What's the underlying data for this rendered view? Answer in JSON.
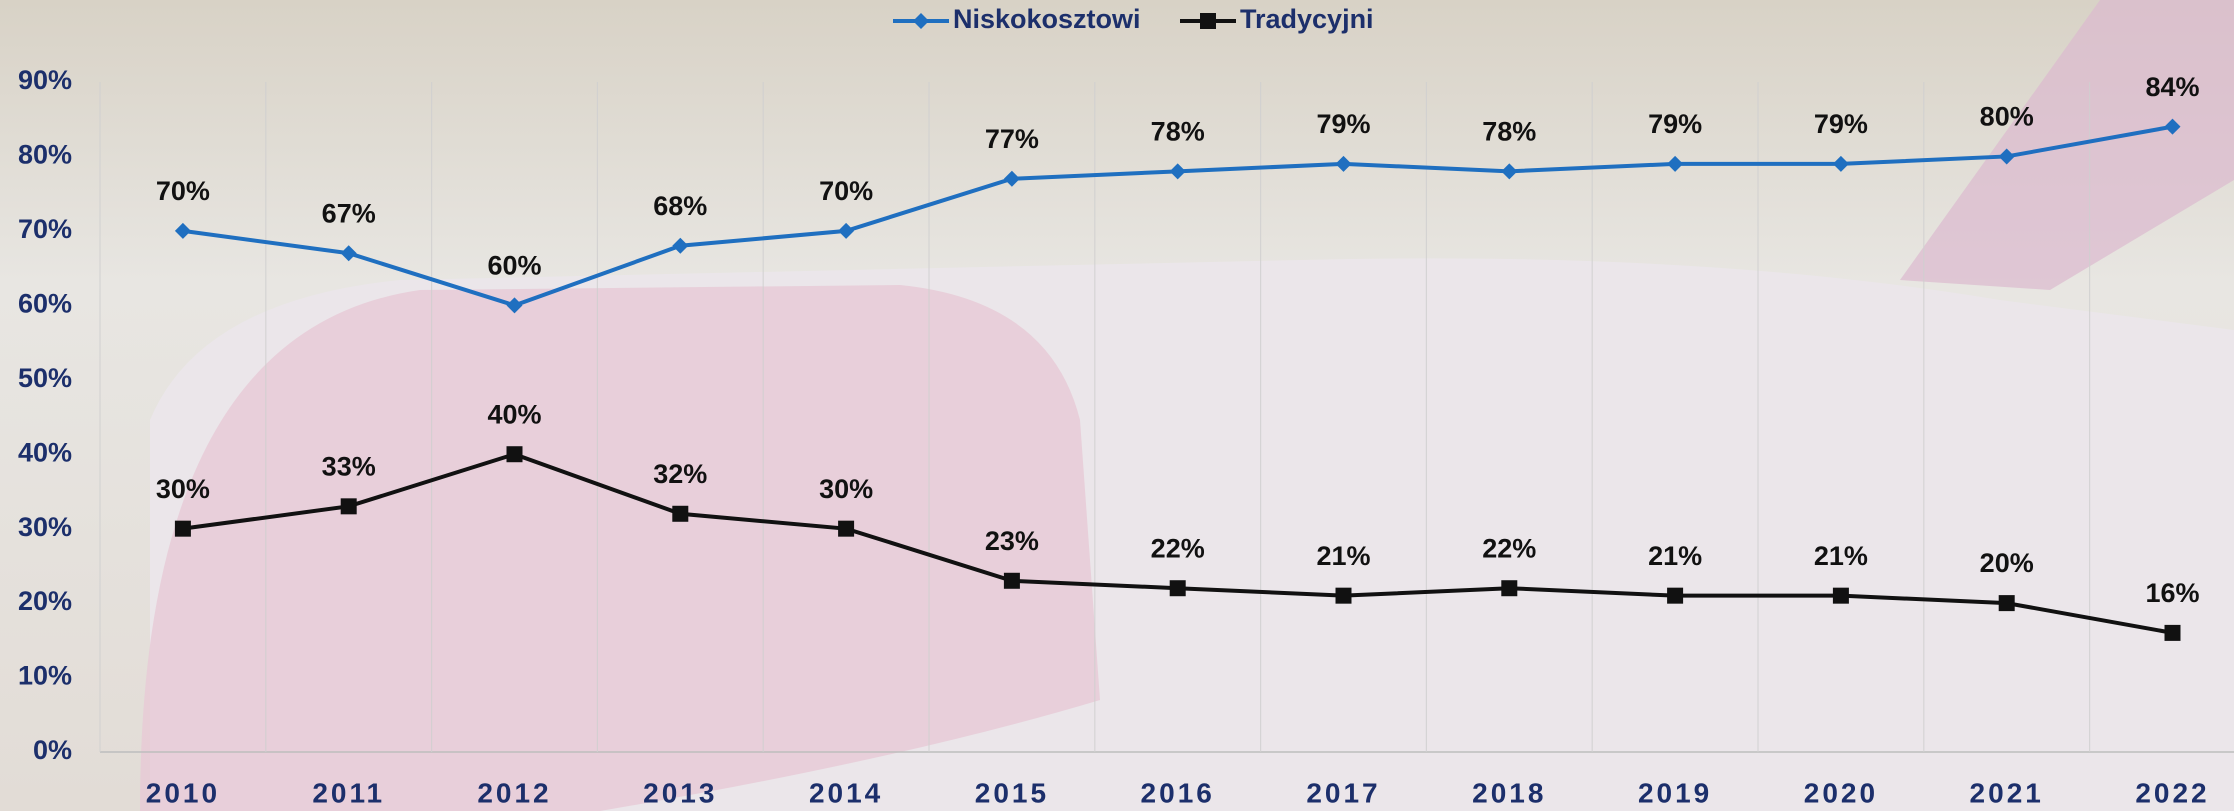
{
  "chart_data": {
    "type": "line",
    "categories": [
      "2010",
      "2011",
      "2012",
      "2013",
      "2014",
      "2015",
      "2016",
      "2017",
      "2018",
      "2019",
      "2020",
      "2021",
      "2022"
    ],
    "series": [
      {
        "name": "Niskokosztowi",
        "color": "#1f6fc0",
        "marker": "diamond",
        "values": [
          70,
          67,
          60,
          68,
          70,
          77,
          78,
          79,
          78,
          79,
          79,
          80,
          84
        ],
        "value_labels": [
          "70%",
          "67%",
          "60%",
          "68%",
          "70%",
          "77%",
          "78%",
          "79%",
          "78%",
          "79%",
          "79%",
          "80%",
          "84%"
        ]
      },
      {
        "name": "Tradycyjni",
        "color": "#111111",
        "marker": "square",
        "values": [
          30,
          33,
          40,
          32,
          30,
          23,
          22,
          21,
          22,
          21,
          21,
          20,
          16
        ],
        "value_labels": [
          "30%",
          "33%",
          "40%",
          "32%",
          "30%",
          "23%",
          "22%",
          "21%",
          "22%",
          "21%",
          "21%",
          "20%",
          "16%"
        ]
      }
    ],
    "ylim": [
      0,
      90
    ],
    "yticks": [
      {
        "value": 0,
        "label": "0%"
      },
      {
        "value": 10,
        "label": "10%"
      },
      {
        "value": 20,
        "label": "20%"
      },
      {
        "value": 30,
        "label": "30%"
      },
      {
        "value": 40,
        "label": "40%"
      },
      {
        "value": 50,
        "label": "50%"
      },
      {
        "value": 60,
        "label": "60%"
      },
      {
        "value": 70,
        "label": "70%"
      },
      {
        "value": 80,
        "label": "80%"
      },
      {
        "value": 90,
        "label": "90%"
      }
    ],
    "grid": true,
    "legend": "top"
  }
}
